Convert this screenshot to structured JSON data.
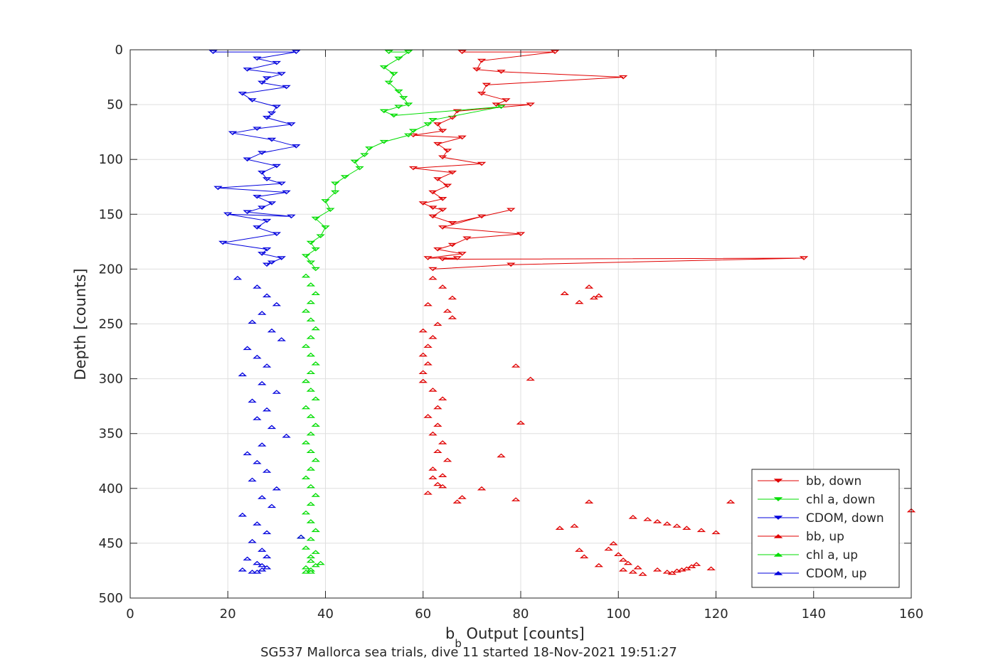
{
  "chart_data": {
    "type": "scatter",
    "xlabel_main": "b",
    "xlabel_sub": "b",
    "xlabel_rest": " Output [counts]",
    "ylabel": "Depth [counts]",
    "caption": "SG537 Mallorca sea trials, dive 11 started 18-Nov-2021 19:51:27",
    "xlim": [
      0,
      160
    ],
    "ylim": [
      0,
      500
    ],
    "y_reversed": true,
    "xticks": [
      "0",
      "20",
      "40",
      "60",
      "80",
      "100",
      "120",
      "140",
      "160"
    ],
    "yticks": [
      "0",
      "50",
      "100",
      "150",
      "200",
      "250",
      "300",
      "350",
      "400",
      "450",
      "500"
    ],
    "grid": true,
    "legend_position": "bottom-right",
    "series": [
      {
        "name": "bb, down",
        "color": "#e00000",
        "marker": "down-triangle",
        "line": true,
        "x": [
          68,
          87,
          72,
          71,
          76,
          101,
          73,
          72,
          77,
          75,
          82,
          67,
          66,
          63,
          64,
          58,
          68,
          63,
          65,
          64,
          72,
          58,
          66,
          63,
          65,
          62,
          64,
          60,
          62,
          64,
          62,
          66,
          78,
          72,
          64,
          80,
          69,
          66,
          63,
          68,
          61,
          67,
          64,
          138,
          78,
          62
        ],
        "y": [
          2,
          2,
          10,
          18,
          20,
          25,
          32,
          40,
          46,
          50,
          50,
          56,
          62,
          68,
          74,
          78,
          80,
          86,
          92,
          98,
          104,
          108,
          112,
          118,
          124,
          130,
          136,
          140,
          144,
          146,
          152,
          158,
          146,
          152,
          162,
          168,
          172,
          178,
          182,
          186,
          190,
          190,
          191,
          190,
          196,
          200
        ]
      },
      {
        "name": "chl a, down",
        "color": "#00dd00",
        "marker": "down-triangle",
        "line": true,
        "x": [
          53,
          57,
          55,
          52,
          54,
          53,
          55,
          56,
          57,
          55,
          52,
          54,
          76,
          62,
          61,
          58,
          57,
          52,
          49,
          48,
          46,
          47,
          44,
          42,
          42,
          40,
          41,
          38,
          40,
          39,
          37,
          38,
          36,
          37,
          38
        ],
        "y": [
          2,
          2,
          8,
          16,
          22,
          30,
          38,
          44,
          50,
          52,
          56,
          60,
          52,
          64,
          68,
          74,
          78,
          84,
          90,
          96,
          102,
          108,
          116,
          122,
          130,
          138,
          146,
          154,
          162,
          170,
          176,
          182,
          188,
          194,
          200
        ]
      },
      {
        "name": "CDOM, down",
        "color": "#0000dd",
        "marker": "down-triangle",
        "line": true,
        "x": [
          17,
          34,
          26,
          30,
          24,
          31,
          28,
          27,
          32,
          23,
          25,
          30,
          29,
          28,
          33,
          26,
          21,
          29,
          34,
          27,
          24,
          30,
          27,
          28,
          31,
          18,
          32,
          26,
          29,
          27,
          24,
          33,
          20,
          28,
          26,
          30,
          19,
          28,
          27,
          31,
          29,
          28
        ],
        "y": [
          2,
          2,
          8,
          12,
          18,
          22,
          26,
          30,
          34,
          40,
          46,
          52,
          58,
          62,
          68,
          72,
          76,
          82,
          88,
          94,
          100,
          106,
          112,
          118,
          122,
          126,
          130,
          134,
          140,
          144,
          148,
          152,
          150,
          156,
          162,
          168,
          176,
          182,
          186,
          190,
          194,
          196
        ]
      },
      {
        "name": "bb, up",
        "color": "#e00000",
        "marker": "up-triangle",
        "line": false,
        "x": [
          62,
          64,
          66,
          61,
          65,
          66,
          63,
          60,
          62,
          61,
          60,
          61,
          60,
          60,
          62,
          64,
          63,
          61,
          63,
          62,
          64,
          63,
          65,
          62,
          62,
          64,
          61,
          63,
          64,
          67,
          68,
          72,
          76,
          80,
          82,
          79,
          89,
          92,
          94,
          95,
          96,
          79,
          94,
          103,
          106,
          108,
          110,
          112,
          114,
          117,
          120,
          123,
          160,
          99,
          98,
          100,
          101,
          102,
          104,
          88,
          91,
          92,
          93,
          96,
          101,
          103,
          105,
          108,
          110,
          111,
          112,
          113,
          114,
          115,
          116,
          119
        ],
        "y": [
          208,
          216,
          226,
          232,
          238,
          244,
          250,
          256,
          262,
          270,
          278,
          286,
          294,
          302,
          310,
          318,
          326,
          334,
          342,
          350,
          358,
          366,
          374,
          382,
          390,
          398,
          404,
          396,
          388,
          412,
          408,
          400,
          370,
          340,
          300,
          288,
          222,
          230,
          216,
          226,
          224,
          410,
          412,
          426,
          428,
          430,
          432,
          434,
          436,
          438,
          440,
          412,
          420,
          450,
          455,
          460,
          465,
          468,
          472,
          436,
          434,
          456,
          462,
          470,
          474,
          476,
          478,
          474,
          476,
          477,
          475,
          474,
          473,
          471,
          469,
          473
        ]
      },
      {
        "name": "chl a, up",
        "color": "#00dd00",
        "marker": "up-triangle",
        "line": false,
        "x": [
          36,
          37,
          38,
          37,
          36,
          37,
          38,
          37,
          36,
          37,
          38,
          37,
          36,
          37,
          38,
          36,
          37,
          38,
          37,
          36,
          37,
          38,
          37,
          36,
          37,
          38,
          37,
          36,
          37,
          38,
          37,
          36,
          37,
          38,
          37,
          36,
          37,
          38,
          39,
          35,
          36,
          37
        ],
        "y": [
          206,
          214,
          222,
          230,
          238,
          246,
          254,
          262,
          270,
          278,
          286,
          294,
          302,
          310,
          318,
          326,
          334,
          342,
          350,
          358,
          366,
          374,
          382,
          390,
          398,
          406,
          414,
          422,
          430,
          438,
          446,
          454,
          462,
          470,
          476,
          472,
          466,
          458,
          468,
          444,
          476,
          474
        ]
      },
      {
        "name": "CDOM, up",
        "color": "#0000dd",
        "marker": "up-triangle",
        "line": false,
        "x": [
          22,
          26,
          28,
          30,
          27,
          25,
          29,
          31,
          24,
          26,
          28,
          23,
          27,
          30,
          25,
          28,
          26,
          29,
          32,
          27,
          24,
          26,
          28,
          25,
          30,
          27,
          29,
          23,
          26,
          28,
          25,
          27,
          35,
          24,
          26,
          28,
          27,
          23,
          25,
          27,
          28,
          26
        ],
        "y": [
          208,
          216,
          224,
          232,
          240,
          248,
          256,
          264,
          272,
          280,
          288,
          296,
          304,
          312,
          320,
          328,
          336,
          344,
          352,
          360,
          368,
          376,
          384,
          392,
          400,
          408,
          416,
          424,
          432,
          440,
          448,
          456,
          444,
          464,
          468,
          472,
          474,
          474,
          476,
          470,
          462,
          476
        ]
      }
    ]
  }
}
